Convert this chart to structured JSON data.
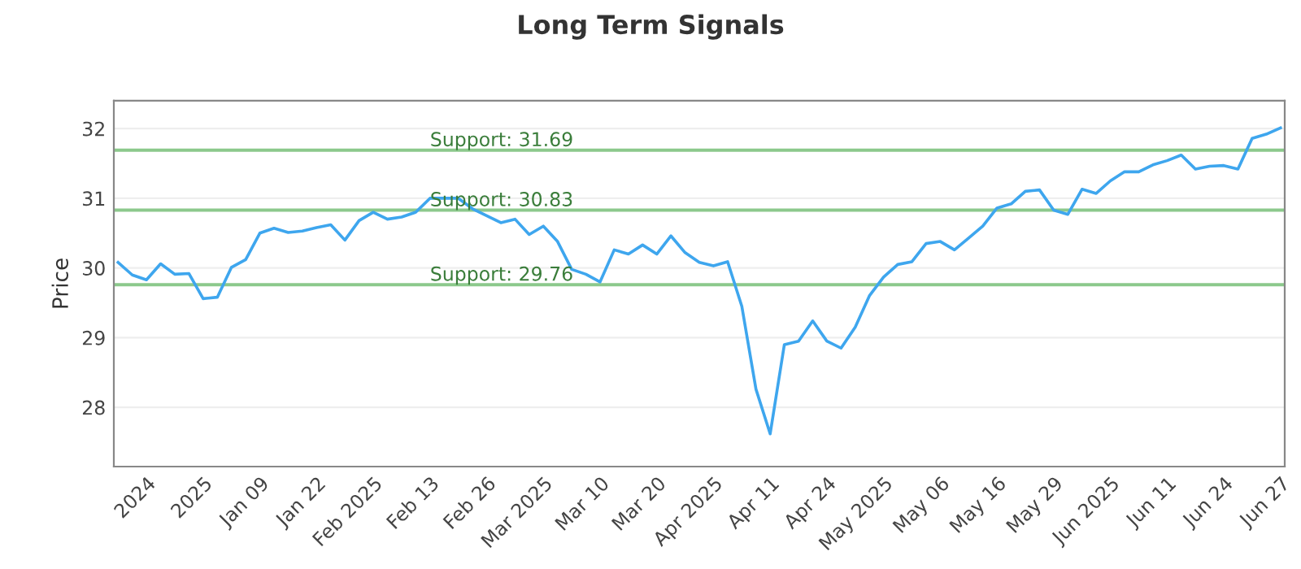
{
  "chart_data": {
    "type": "line",
    "title": "Long Term Signals",
    "ylabel": "Price",
    "categories": [
      null,
      null,
      "2024",
      null,
      null,
      null,
      "2025",
      null,
      null,
      null,
      "Jan 09",
      null,
      null,
      null,
      "Jan 22",
      null,
      null,
      null,
      "Feb 2025",
      null,
      null,
      null,
      "Feb 13",
      null,
      null,
      null,
      "Feb 26",
      null,
      null,
      null,
      "Mar 2025",
      null,
      null,
      null,
      "Mar 10",
      null,
      null,
      null,
      "Mar 20",
      null,
      null,
      null,
      "Apr 2025",
      null,
      null,
      null,
      "Apr 11",
      null,
      null,
      null,
      "Apr 24",
      null,
      null,
      null,
      "May 2025",
      null,
      null,
      null,
      "May 06",
      null,
      null,
      null,
      "May 16",
      null,
      null,
      null,
      "May 29",
      null,
      null,
      null,
      "Jun 2025",
      null,
      null,
      null,
      "Jun 11",
      null,
      null,
      null,
      "Jun 24",
      null,
      null,
      null,
      "Jun 27"
    ],
    "series": [
      {
        "color": "#3ea6ee",
        "values": [
          30.08,
          29.9,
          29.83,
          30.06,
          29.91,
          29.92,
          29.56,
          29.58,
          30.01,
          30.12,
          30.5,
          30.57,
          30.51,
          30.53,
          30.58,
          30.62,
          30.4,
          30.68,
          30.8,
          30.7,
          30.73,
          30.8,
          31.0,
          31.0,
          31.0,
          30.85,
          30.75,
          30.65,
          30.7,
          30.48,
          30.6,
          30.38,
          29.98,
          29.91,
          29.8,
          30.26,
          30.2,
          30.33,
          30.2,
          30.46,
          30.22,
          30.08,
          30.03,
          30.09,
          29.45,
          28.26,
          27.62,
          28.9,
          28.95,
          29.24,
          28.95,
          28.85,
          29.15,
          29.6,
          29.87,
          30.05,
          30.09,
          30.35,
          30.38,
          30.26,
          30.43,
          30.6,
          30.86,
          30.92,
          31.1,
          31.12,
          30.83,
          30.77,
          31.13,
          31.07,
          31.25,
          31.38,
          31.38,
          31.48,
          31.54,
          31.62,
          31.42,
          31.46,
          31.47,
          31.42,
          31.86,
          31.92,
          32.01
        ]
      }
    ],
    "ylim": [
      27.15,
      32.4
    ],
    "yticks": [
      28,
      29,
      30,
      31,
      32
    ],
    "grid": "y",
    "marker": "none",
    "line_style": "solid",
    "ref_lines": [
      {
        "axis": "y",
        "value": 31.69,
        "label": "Support: 31.69",
        "color": "#8cc98c"
      },
      {
        "axis": "y",
        "value": 30.83,
        "label": "Support: 30.83",
        "color": "#8cc98c"
      },
      {
        "axis": "y",
        "value": 29.76,
        "label": "Support: 29.76",
        "color": "#8cc98c"
      }
    ]
  }
}
